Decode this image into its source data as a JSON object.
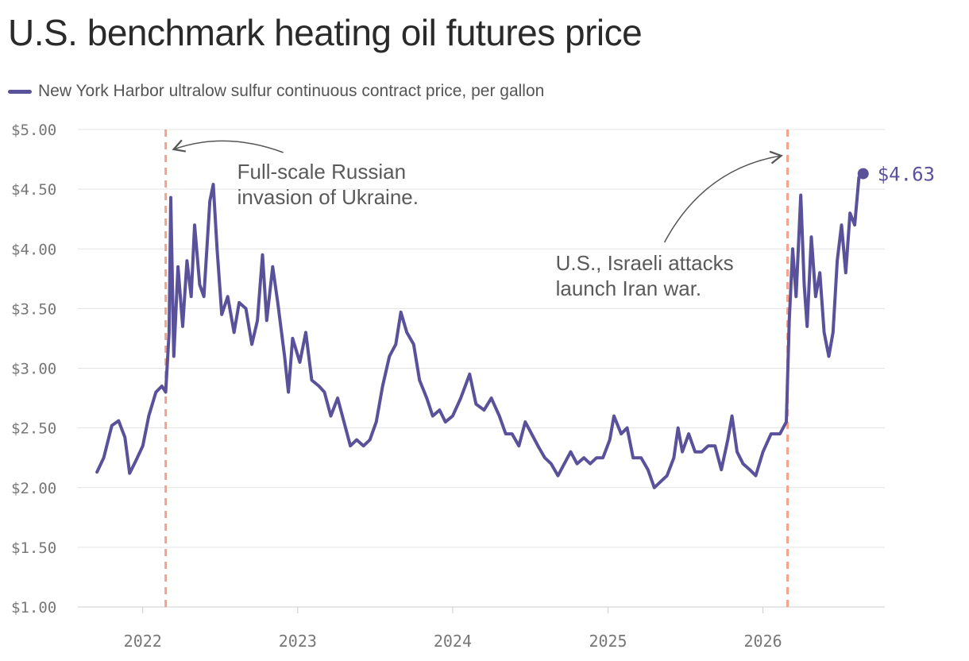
{
  "chart_data": {
    "type": "line",
    "title": "U.S. benchmark heating oil futures price",
    "legend": {
      "position": "top-left"
    },
    "series": [
      {
        "name": "New York Harbor ultralow sulfur continuous contract price, per gallon",
        "points": [
          [
            "2021-09-15",
            2.13
          ],
          [
            "2021-10-01",
            2.25
          ],
          [
            "2021-10-20",
            2.52
          ],
          [
            "2021-11-05",
            2.56
          ],
          [
            "2021-11-20",
            2.42
          ],
          [
            "2021-12-01",
            2.12
          ],
          [
            "2021-12-15",
            2.22
          ],
          [
            "2022-01-01",
            2.35
          ],
          [
            "2022-01-15",
            2.6
          ],
          [
            "2022-02-01",
            2.8
          ],
          [
            "2022-02-15",
            2.85
          ],
          [
            "2022-02-24",
            2.8
          ],
          [
            "2022-03-04",
            3.3
          ],
          [
            "2022-03-08",
            4.43
          ],
          [
            "2022-03-15",
            3.1
          ],
          [
            "2022-03-25",
            3.85
          ],
          [
            "2022-04-05",
            3.35
          ],
          [
            "2022-04-15",
            3.9
          ],
          [
            "2022-04-25",
            3.6
          ],
          [
            "2022-05-03",
            4.2
          ],
          [
            "2022-05-15",
            3.7
          ],
          [
            "2022-05-25",
            3.6
          ],
          [
            "2022-06-08",
            4.4
          ],
          [
            "2022-06-16",
            4.54
          ],
          [
            "2022-06-25",
            4.0
          ],
          [
            "2022-07-06",
            3.45
          ],
          [
            "2022-07-20",
            3.6
          ],
          [
            "2022-08-04",
            3.3
          ],
          [
            "2022-08-16",
            3.55
          ],
          [
            "2022-09-01",
            3.5
          ],
          [
            "2022-09-15",
            3.2
          ],
          [
            "2022-09-28",
            3.4
          ],
          [
            "2022-10-10",
            3.95
          ],
          [
            "2022-10-20",
            3.4
          ],
          [
            "2022-11-03",
            3.85
          ],
          [
            "2022-11-15",
            3.55
          ],
          [
            "2022-12-01",
            3.1
          ],
          [
            "2022-12-10",
            2.8
          ],
          [
            "2022-12-20",
            3.25
          ],
          [
            "2023-01-06",
            3.05
          ],
          [
            "2023-01-20",
            3.3
          ],
          [
            "2023-02-03",
            2.9
          ],
          [
            "2023-02-20",
            2.85
          ],
          [
            "2023-03-05",
            2.8
          ],
          [
            "2023-03-20",
            2.6
          ],
          [
            "2023-04-05",
            2.75
          ],
          [
            "2023-04-20",
            2.55
          ],
          [
            "2023-05-05",
            2.35
          ],
          [
            "2023-05-20",
            2.4
          ],
          [
            "2023-06-05",
            2.35
          ],
          [
            "2023-06-20",
            2.4
          ],
          [
            "2023-07-05",
            2.55
          ],
          [
            "2023-07-20",
            2.85
          ],
          [
            "2023-08-05",
            3.1
          ],
          [
            "2023-08-20",
            3.2
          ],
          [
            "2023-09-01",
            3.47
          ],
          [
            "2023-09-15",
            3.3
          ],
          [
            "2023-10-01",
            3.2
          ],
          [
            "2023-10-15",
            2.9
          ],
          [
            "2023-11-01",
            2.75
          ],
          [
            "2023-11-15",
            2.6
          ],
          [
            "2023-12-01",
            2.65
          ],
          [
            "2023-12-15",
            2.55
          ],
          [
            "2024-01-01",
            2.6
          ],
          [
            "2024-01-20",
            2.75
          ],
          [
            "2024-02-10",
            2.95
          ],
          [
            "2024-02-25",
            2.7
          ],
          [
            "2024-03-15",
            2.65
          ],
          [
            "2024-04-01",
            2.75
          ],
          [
            "2024-04-20",
            2.6
          ],
          [
            "2024-05-05",
            2.45
          ],
          [
            "2024-05-20",
            2.45
          ],
          [
            "2024-06-05",
            2.35
          ],
          [
            "2024-06-20",
            2.55
          ],
          [
            "2024-07-05",
            2.45
          ],
          [
            "2024-07-20",
            2.35
          ],
          [
            "2024-08-05",
            2.25
          ],
          [
            "2024-08-20",
            2.2
          ],
          [
            "2024-09-05",
            2.1
          ],
          [
            "2024-09-20",
            2.2
          ],
          [
            "2024-10-05",
            2.3
          ],
          [
            "2024-10-20",
            2.2
          ],
          [
            "2024-11-05",
            2.25
          ],
          [
            "2024-11-20",
            2.2
          ],
          [
            "2024-12-05",
            2.25
          ],
          [
            "2024-12-20",
            2.25
          ],
          [
            "2025-01-05",
            2.4
          ],
          [
            "2025-01-15",
            2.6
          ],
          [
            "2025-02-01",
            2.45
          ],
          [
            "2025-02-15",
            2.5
          ],
          [
            "2025-03-01",
            2.25
          ],
          [
            "2025-03-20",
            2.25
          ],
          [
            "2025-04-05",
            2.15
          ],
          [
            "2025-04-20",
            2.0
          ],
          [
            "2025-05-05",
            2.05
          ],
          [
            "2025-05-20",
            2.1
          ],
          [
            "2025-06-05",
            2.25
          ],
          [
            "2025-06-15",
            2.5
          ],
          [
            "2025-06-25",
            2.3
          ],
          [
            "2025-07-10",
            2.45
          ],
          [
            "2025-07-25",
            2.3
          ],
          [
            "2025-08-10",
            2.3
          ],
          [
            "2025-08-25",
            2.35
          ],
          [
            "2025-09-10",
            2.35
          ],
          [
            "2025-09-25",
            2.15
          ],
          [
            "2025-10-10",
            2.4
          ],
          [
            "2025-10-20",
            2.6
          ],
          [
            "2025-11-01",
            2.3
          ],
          [
            "2025-11-15",
            2.2
          ],
          [
            "2025-12-01",
            2.15
          ],
          [
            "2025-12-15",
            2.1
          ],
          [
            "2026-01-01",
            2.3
          ],
          [
            "2026-01-20",
            2.45
          ],
          [
            "2026-02-10",
            2.45
          ],
          [
            "2026-02-25",
            2.55
          ],
          [
            "2026-03-04",
            3.4
          ],
          [
            "2026-03-12",
            4.0
          ],
          [
            "2026-03-20",
            3.6
          ],
          [
            "2026-03-31",
            4.45
          ],
          [
            "2026-04-08",
            3.7
          ],
          [
            "2026-04-15",
            3.35
          ],
          [
            "2026-04-25",
            4.1
          ],
          [
            "2026-05-05",
            3.6
          ],
          [
            "2026-05-15",
            3.8
          ],
          [
            "2026-05-25",
            3.3
          ],
          [
            "2026-06-05",
            3.1
          ],
          [
            "2026-06-15",
            3.3
          ],
          [
            "2026-06-25",
            3.9
          ],
          [
            "2026-07-05",
            4.2
          ],
          [
            "2026-07-15",
            3.8
          ],
          [
            "2026-07-25",
            4.3
          ],
          [
            "2026-08-05",
            4.2
          ],
          [
            "2026-08-15",
            4.6
          ],
          [
            "2026-08-25",
            4.63
          ]
        ]
      }
    ],
    "x_axis": {
      "type": "date",
      "range": [
        "2021-08-01",
        "2026-10-15"
      ],
      "ticks": [
        {
          "date": "2022-01-01",
          "label": "2022"
        },
        {
          "date": "2023-01-01",
          "label": "2023"
        },
        {
          "date": "2024-01-01",
          "label": "2024"
        },
        {
          "date": "2025-01-01",
          "label": "2025"
        },
        {
          "date": "2026-01-01",
          "label": "2026"
        }
      ]
    },
    "y_axis": {
      "range": [
        1.0,
        5.0
      ],
      "ticks": [
        {
          "value": 1.0,
          "label": "$1.00"
        },
        {
          "value": 1.5,
          "label": "$1.50"
        },
        {
          "value": 2.0,
          "label": "$2.00"
        },
        {
          "value": 2.5,
          "label": "$2.50"
        },
        {
          "value": 3.0,
          "label": "$3.00"
        },
        {
          "value": 3.5,
          "label": "$3.50"
        },
        {
          "value": 4.0,
          "label": "$4.00"
        },
        {
          "value": 4.5,
          "label": "$4.50"
        },
        {
          "value": 5.0,
          "label": "$5.00"
        }
      ]
    },
    "grid": true,
    "annotations": [
      {
        "date": "2022-02-24",
        "lines": [
          "Full-scale Russian",
          "invasion of Ukraine."
        ]
      },
      {
        "date": "2026-02-28",
        "lines": [
          "U.S., Israeli attacks",
          "launch Iran war."
        ]
      }
    ],
    "end_label": {
      "date": "2026-08-25",
      "value": 4.63,
      "text": "$4.63"
    }
  },
  "colors": {
    "line": "#5a519b",
    "event_line": "#f5a28a",
    "grid": "#e3e3e3",
    "axis": "#cccccc",
    "arrow": "#555555"
  }
}
